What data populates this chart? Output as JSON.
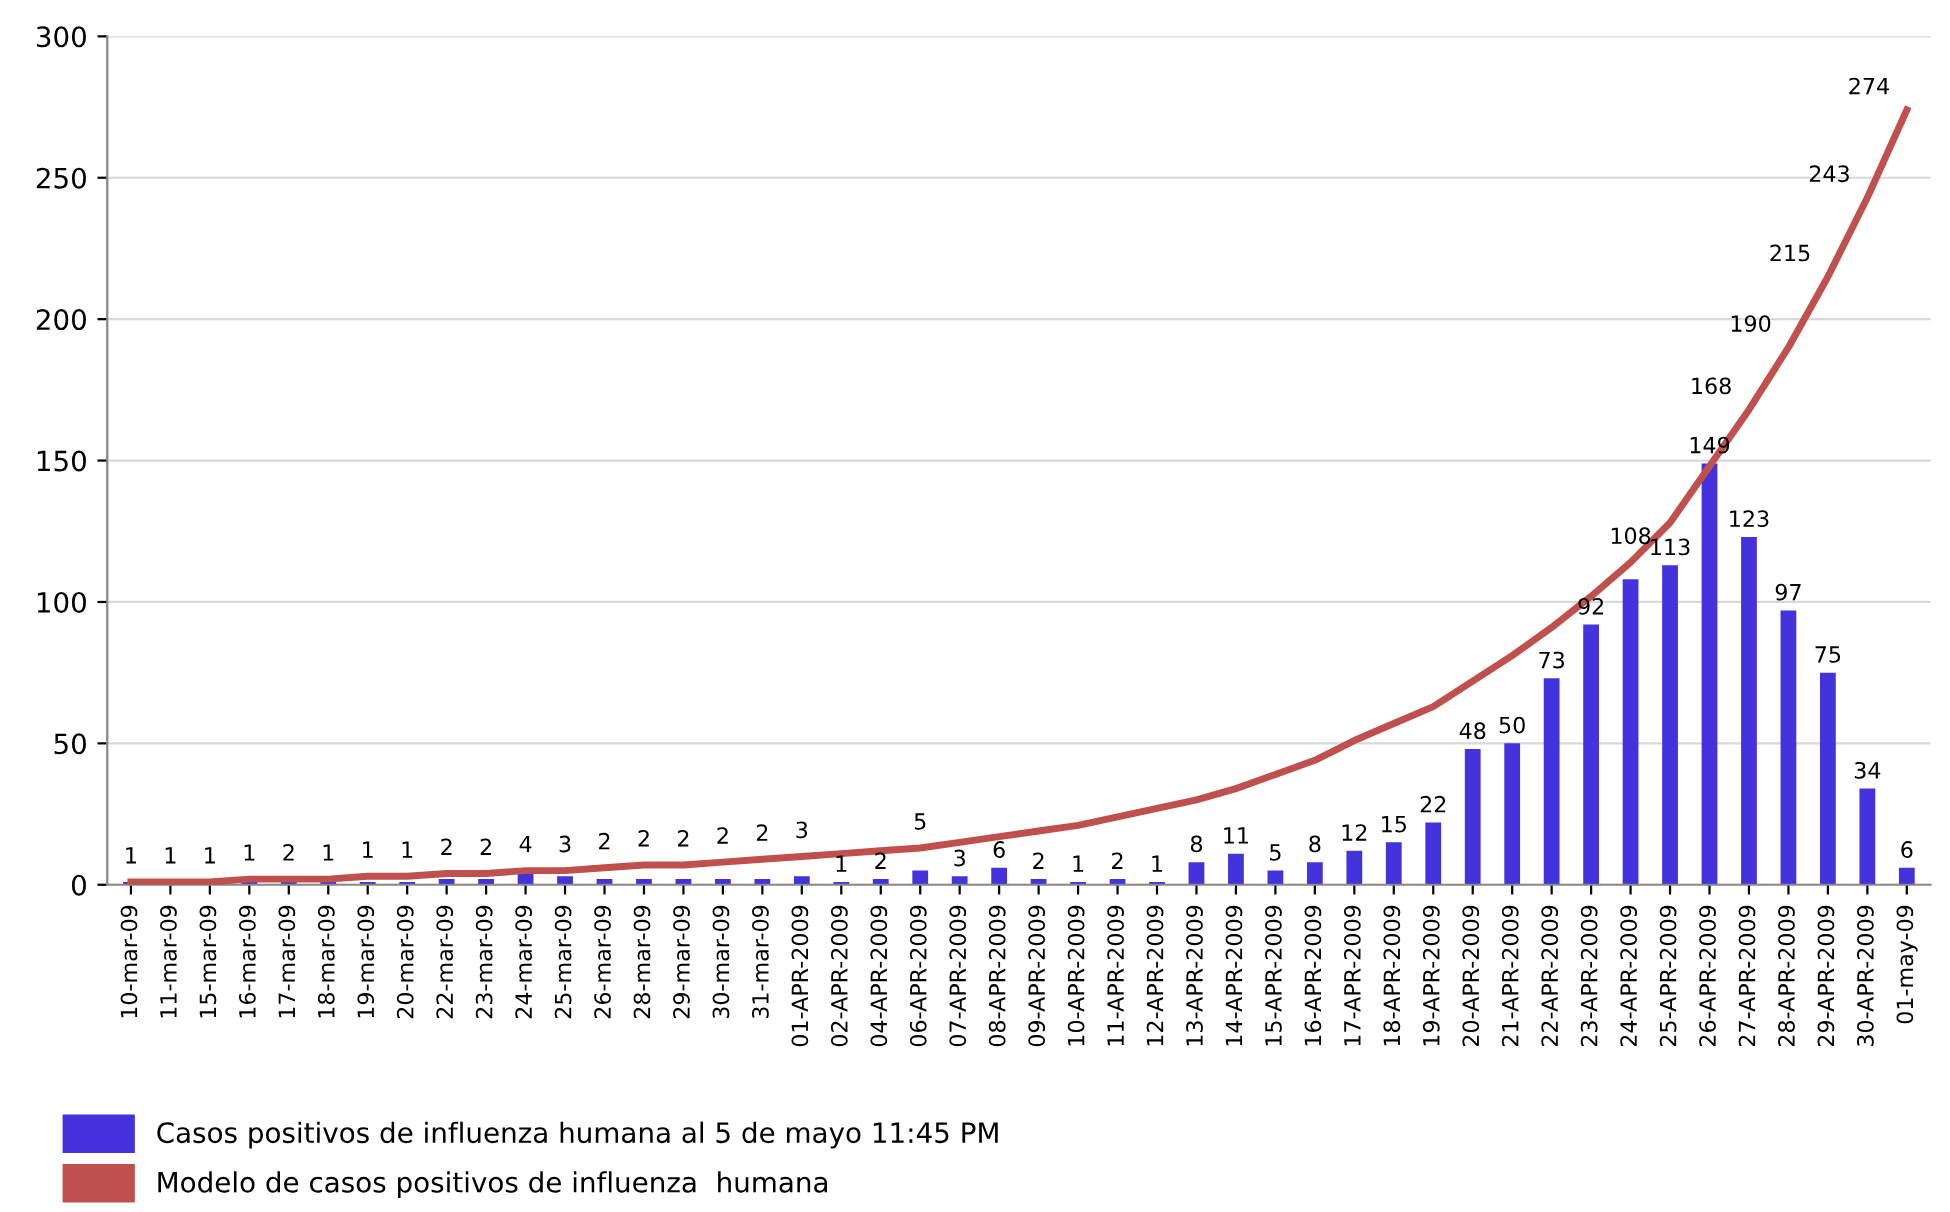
{
  "chart_data": {
    "type": "bar",
    "categories": [
      "10-mar-09",
      "11-mar-09",
      "15-mar-09",
      "16-mar-09",
      "17-mar-09",
      "18-mar-09",
      "19-mar-09",
      "20-mar-09",
      "22-mar-09",
      "23-mar-09",
      "24-mar-09",
      "25-mar-09",
      "26-mar-09",
      "28-mar-09",
      "29-mar-09",
      "30-mar-09",
      "31-mar-09",
      "01-APR-2009",
      "02-APR-2009",
      "04-APR-2009",
      "06-APR-2009",
      "07-APR-2009",
      "08-APR-2009",
      "09-APR-2009",
      "10-APR-2009",
      "11-APR-2009",
      "12-APR-2009",
      "13-APR-2009",
      "14-APR-2009",
      "15-APR-2009",
      "16-APR-2009",
      "17-APR-2009",
      "18-APR-2009",
      "19-APR-2009",
      "20-APR-2009",
      "21-APR-2009",
      "22-APR-2009",
      "23-APR-2009",
      "24-APR-2009",
      "25-APR-2009",
      "26-APR-2009",
      "27-APR-2009",
      "28-APR-2009",
      "29-APR-2009",
      "30-APR-2009",
      "01-may-09"
    ],
    "series": [
      {
        "name": "Casos positivos de influenza humana al 5 de mayo 11:45 PM",
        "color": "#4433dd",
        "data_labels": true,
        "values": [
          1,
          1,
          1,
          1,
          2,
          1,
          1,
          1,
          2,
          2,
          4,
          3,
          2,
          2,
          2,
          2,
          2,
          3,
          1,
          2,
          5,
          3,
          6,
          2,
          1,
          2,
          1,
          8,
          11,
          5,
          8,
          12,
          15,
          22,
          48,
          50,
          73,
          92,
          108,
          113,
          149,
          123,
          97,
          75,
          34,
          6
        ]
      },
      {
        "name": "Modelo de casos positivos de influenza  humana",
        "type": "line",
        "color": "#c0504d",
        "values": [
          1,
          1,
          1,
          2,
          2,
          2,
          3,
          3,
          4,
          4,
          5,
          5,
          6,
          7,
          7,
          8,
          9,
          10,
          11,
          12,
          13,
          15,
          17,
          19,
          21,
          24,
          27,
          30,
          34,
          39,
          44,
          51,
          57,
          63,
          72,
          81,
          91,
          102,
          114,
          128,
          148,
          168,
          190,
          215,
          243,
          274
        ],
        "value_labels": [
          null,
          null,
          null,
          null,
          null,
          null,
          null,
          null,
          null,
          null,
          null,
          null,
          null,
          null,
          null,
          null,
          null,
          null,
          null,
          null,
          null,
          null,
          null,
          null,
          null,
          null,
          null,
          null,
          null,
          null,
          null,
          null,
          null,
          null,
          null,
          null,
          null,
          null,
          null,
          null,
          null,
          "168",
          "190",
          "215",
          "243",
          "274"
        ]
      }
    ],
    "ylim": [
      0,
      300
    ],
    "yticks": [
      0,
      50,
      100,
      150,
      200,
      250,
      300
    ],
    "grid": "y",
    "legend": "bottom left"
  }
}
